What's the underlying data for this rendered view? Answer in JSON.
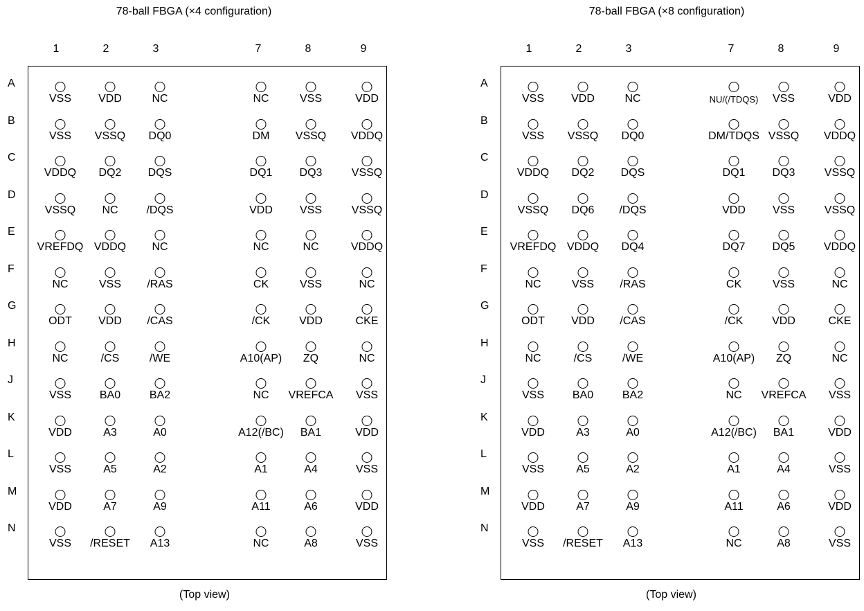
{
  "cols": [
    "1",
    "2",
    "3",
    "7",
    "8",
    "9"
  ],
  "rows": [
    "A",
    "B",
    "C",
    "D",
    "E",
    "F",
    "G",
    "H",
    "J",
    "K",
    "L",
    "M",
    "N"
  ],
  "panels": [
    {
      "title": "78-ball FBGA (×4 configuration)",
      "caption": "(Top view)",
      "pins": [
        [
          "VSS",
          "VDD",
          "NC",
          "NC",
          "VSS",
          "VDD"
        ],
        [
          "VSS",
          "VSSQ",
          "DQ0",
          "DM",
          "VSSQ",
          "VDDQ"
        ],
        [
          "VDDQ",
          "DQ2",
          "DQS",
          "DQ1",
          "DQ3",
          "VSSQ"
        ],
        [
          "VSSQ",
          "NC",
          "/DQS",
          "VDD",
          "VSS",
          "VSSQ"
        ],
        [
          "VREFDQ",
          "VDDQ",
          "NC",
          "NC",
          "NC",
          "VDDQ"
        ],
        [
          "NC",
          "VSS",
          "/RAS",
          "CK",
          "VSS",
          "NC"
        ],
        [
          "ODT",
          "VDD",
          "/CAS",
          "/CK",
          "VDD",
          "CKE"
        ],
        [
          "NC",
          "/CS",
          "/WE",
          "A10(AP)",
          "ZQ",
          "NC"
        ],
        [
          "VSS",
          "BA0",
          "BA2",
          "NC",
          "VREFCA",
          "VSS"
        ],
        [
          "VDD",
          "A3",
          "A0",
          "A12(/BC)",
          "BA1",
          "VDD"
        ],
        [
          "VSS",
          "A5",
          "A2",
          "A1",
          "A4",
          "VSS"
        ],
        [
          "VDD",
          "A7",
          "A9",
          "A11",
          "A6",
          "VDD"
        ],
        [
          "VSS",
          "/RESET",
          "A13",
          "NC",
          "A8",
          "VSS"
        ]
      ]
    },
    {
      "title": "78-ball FBGA (×8 configuration)",
      "caption": "(Top view)",
      "pins": [
        [
          "VSS",
          "VDD",
          "NC",
          "NU/(/TDQS)",
          "VSS",
          "VDD"
        ],
        [
          "VSS",
          "VSSQ",
          "DQ0",
          "DM/TDQS",
          "VSSQ",
          "VDDQ"
        ],
        [
          "VDDQ",
          "DQ2",
          "DQS",
          "DQ1",
          "DQ3",
          "VSSQ"
        ],
        [
          "VSSQ",
          "DQ6",
          "/DQS",
          "VDD",
          "VSS",
          "VSSQ"
        ],
        [
          "VREFDQ",
          "VDDQ",
          "DQ4",
          "DQ7",
          "DQ5",
          "VDDQ"
        ],
        [
          "NC",
          "VSS",
          "/RAS",
          "CK",
          "VSS",
          "NC"
        ],
        [
          "ODT",
          "VDD",
          "/CAS",
          "/CK",
          "VDD",
          "CKE"
        ],
        [
          "NC",
          "/CS",
          "/WE",
          "A10(AP)",
          "ZQ",
          "NC"
        ],
        [
          "VSS",
          "BA0",
          "BA2",
          "NC",
          "VREFCA",
          "VSS"
        ],
        [
          "VDD",
          "A3",
          "A0",
          "A12(/BC)",
          "BA1",
          "VDD"
        ],
        [
          "VSS",
          "A5",
          "A2",
          "A1",
          "A4",
          "VSS"
        ],
        [
          "VDD",
          "A7",
          "A9",
          "A11",
          "A6",
          "VDD"
        ],
        [
          "VSS",
          "/RESET",
          "A13",
          "NC",
          "A8",
          "VSS"
        ]
      ]
    }
  ]
}
